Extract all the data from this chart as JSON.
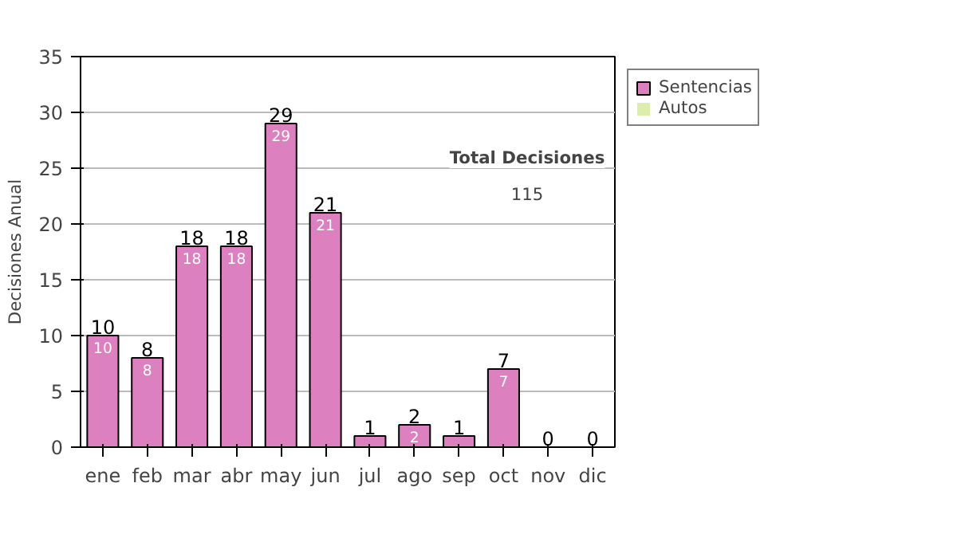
{
  "chart_data": {
    "type": "bar",
    "ylabel": "Decisiones Anual",
    "categories": [
      "ene",
      "feb",
      "mar",
      "abr",
      "may",
      "jun",
      "jul",
      "ago",
      "sep",
      "oct",
      "nov",
      "dic"
    ],
    "stacked": true,
    "series": [
      {
        "name": "Sentencias",
        "color": "#dd80c0",
        "values": [
          10,
          8,
          18,
          18,
          29,
          21,
          1,
          2,
          1,
          7,
          0,
          0
        ],
        "value_labels": [
          "10",
          "8",
          "18",
          "18",
          "29",
          "21",
          null,
          "2",
          null,
          "7",
          null,
          null
        ]
      },
      {
        "name": "Autos",
        "color": "#ddeeaa",
        "values": [
          0,
          0,
          0,
          0,
          0,
          0,
          0,
          0,
          0,
          0,
          0,
          0
        ]
      }
    ],
    "totals": [
      "10",
      "8",
      "18",
      "18",
      "29",
      "21",
      "1",
      "2",
      "1",
      "7",
      "0",
      "0"
    ],
    "ylim": [
      0,
      35
    ],
    "yticks": [
      0,
      5,
      10,
      15,
      20,
      25,
      30,
      35
    ],
    "grid": "y",
    "legend": "right",
    "annotations": [
      "Total Decisiones",
      "115"
    ]
  }
}
